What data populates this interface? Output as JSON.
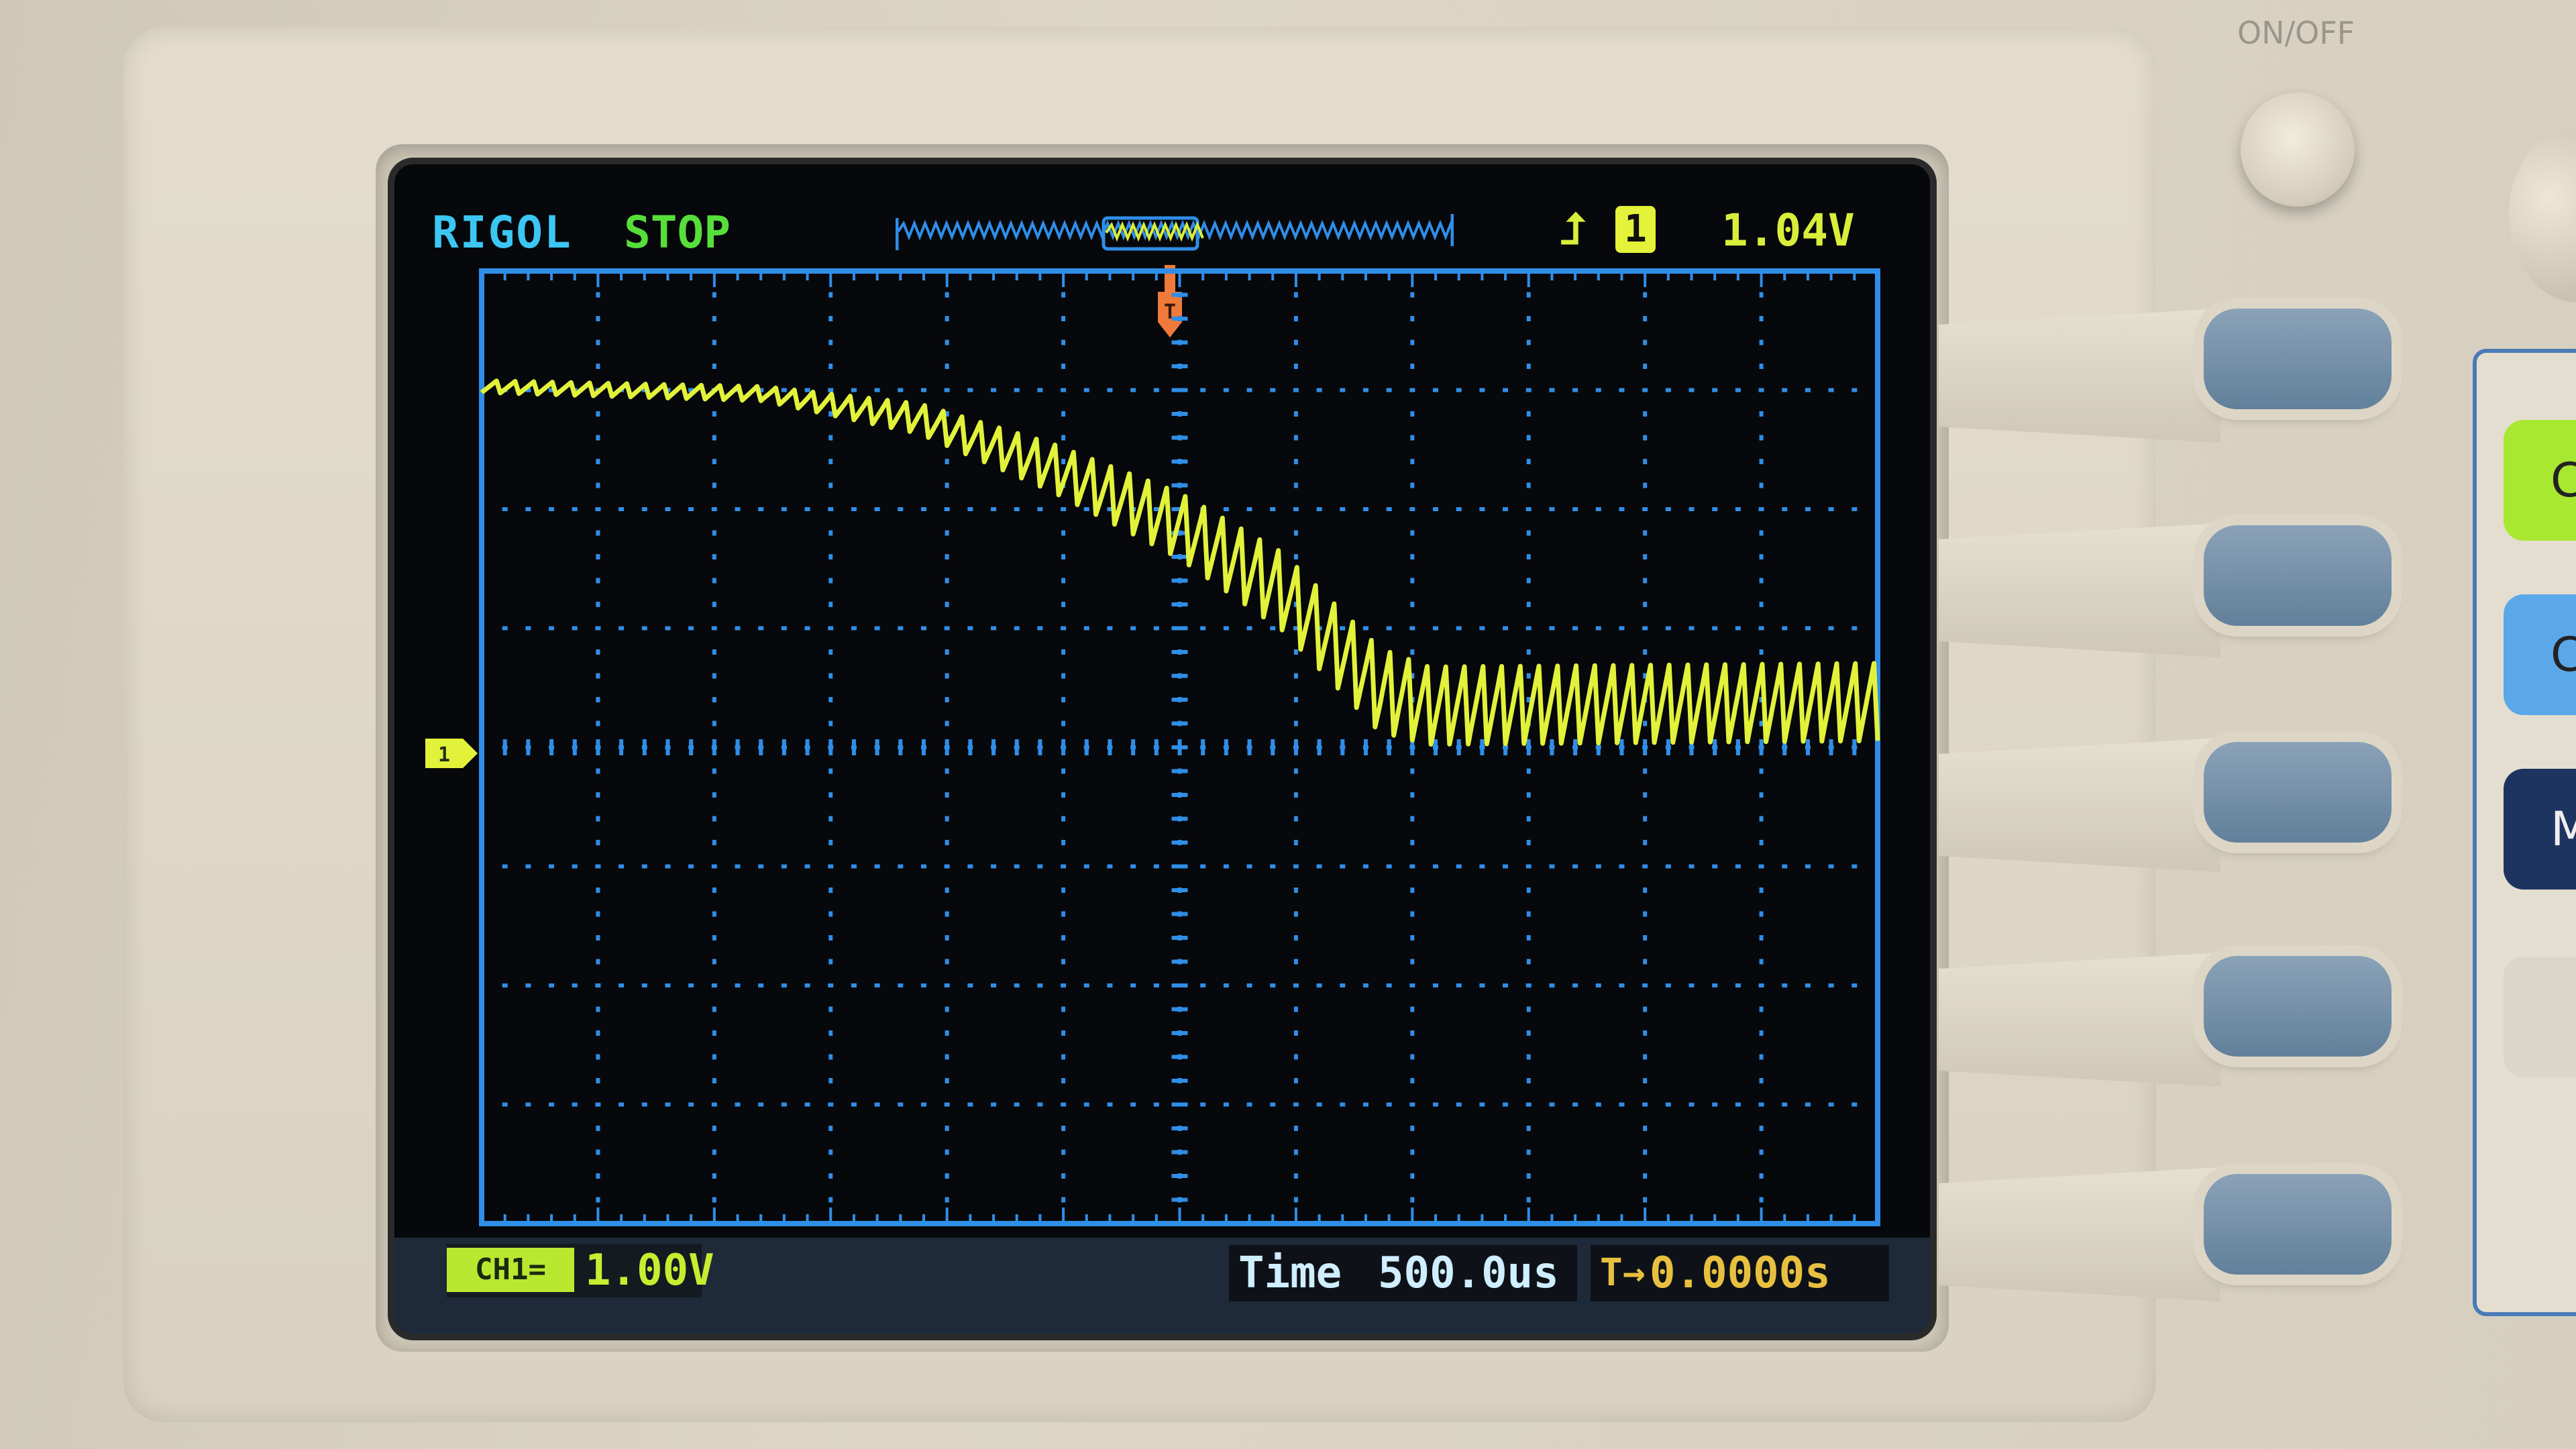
{
  "header": {
    "brand": "RIGOL",
    "run_state": "STOP",
    "trigger_slope_icon": "rising-edge-trigger-icon",
    "trigger_source": "1",
    "trigger_level": "1.04V"
  },
  "footer": {
    "channel_label": "CH1",
    "coupling_icon": "dc-coupling-icon",
    "coupling_symbol": "=",
    "volts_per_div": "1.00V",
    "timebase_label": "Time",
    "timebase_value": "500.0us",
    "trigger_offset_icon": "trigger-offset-icon",
    "trigger_offset_symbol": "T→",
    "trigger_offset": "0.0000s"
  },
  "markers": {
    "channel_marker": "1",
    "trigger_marker": "T"
  },
  "panel": {
    "power_label": "ON/OFF",
    "side_button_labels": [
      "C",
      "C",
      "M"
    ]
  },
  "colors": {
    "brand": "#3cc6f2",
    "run_state": "#56de3a",
    "channel1": "#e2f23a",
    "grid": "#2f8ee8",
    "trigger": "#f07a3c",
    "softkey": "#7592aa"
  },
  "chart_data": {
    "type": "line",
    "title": "",
    "xlabel": "",
    "ylabel": "",
    "x_unit": "ms",
    "y_unit": "V",
    "xlim": [
      -3,
      3
    ],
    "ylim": [
      -4,
      4
    ],
    "divisions": {
      "x": 12,
      "y": 8
    },
    "volts_per_div": 1.0,
    "time_per_div_ms": 0.5,
    "grid": true,
    "legend": "none",
    "series": [
      {
        "channel": "1",
        "envelope": {
          "x": [
            -3.0,
            -1.79,
            -1.12,
            -0.55,
            0.0,
            0.44,
            0.86,
            1.07,
            3.0
          ],
          "y_mid": [
            3.03,
            2.97,
            2.76,
            2.35,
            1.86,
            1.31,
            0.48,
            0.35,
            0.38
          ],
          "ripple_pp": [
            0.1,
            0.12,
            0.25,
            0.4,
            0.55,
            0.65,
            0.7,
            0.65,
            0.65
          ]
        },
        "ripple_period_ms": 0.08,
        "ripple_shape": "sawtooth"
      }
    ]
  }
}
